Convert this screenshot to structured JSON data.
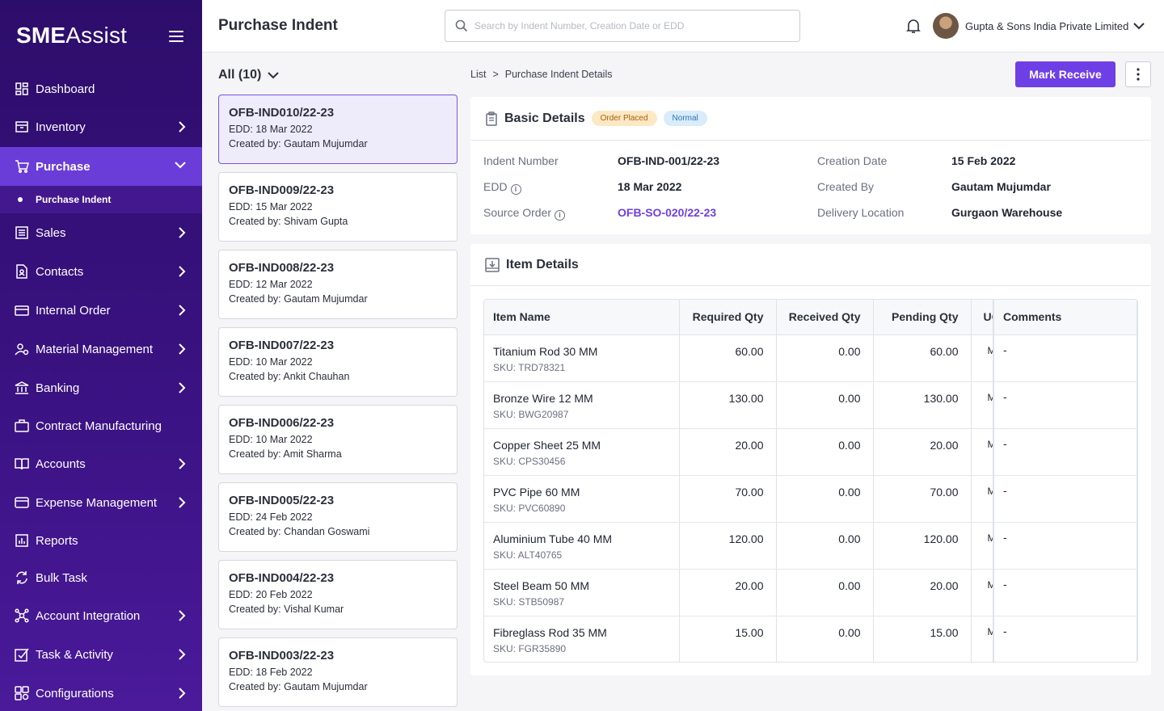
{
  "brand": {
    "bold": "SME",
    "light": "Assist"
  },
  "sidebar": {
    "items": [
      {
        "label": "Dashboard",
        "icon": "dashboard-icon"
      },
      {
        "label": "Inventory",
        "icon": "inventory-icon"
      },
      {
        "label": "Purchase",
        "icon": "cart-icon"
      },
      {
        "label": "Sales",
        "icon": "sales-icon"
      },
      {
        "label": "Contacts",
        "icon": "contacts-icon"
      },
      {
        "label": "Internal Order",
        "icon": "internal-order-icon"
      },
      {
        "label": "Material Management",
        "icon": "material-icon"
      },
      {
        "label": "Banking",
        "icon": "bank-icon"
      },
      {
        "label": "Contract Manufacturing",
        "icon": "briefcase-icon"
      },
      {
        "label": "Accounts",
        "icon": "book-icon"
      },
      {
        "label": "Expense Management",
        "icon": "wallet-icon"
      },
      {
        "label": "Reports",
        "icon": "reports-icon"
      },
      {
        "label": "Bulk Task",
        "icon": "sync-icon"
      },
      {
        "label": "Account Integration",
        "icon": "integration-icon"
      },
      {
        "label": "Task & Activity",
        "icon": "task-icon"
      },
      {
        "label": "Configurations",
        "icon": "config-icon"
      }
    ],
    "sub_item": "Purchase Indent"
  },
  "header": {
    "title": "Purchase Indent",
    "search_placeholder": "Search by Indent Number, Creation Date or EDD",
    "company": "Gupta & Sons India Private Limited"
  },
  "list": {
    "filter_label": "All (10)",
    "cards": [
      {
        "id": "OFB-IND010/22-23",
        "edd": "EDD: 18 Mar 2022",
        "created": "Created by: Gautam Mujumdar"
      },
      {
        "id": "OFB-IND009/22-23",
        "edd": "EDD: 15 Mar 2022",
        "created": "Created by: Shivam Gupta"
      },
      {
        "id": "OFB-IND008/22-23",
        "edd": "EDD: 12 Mar 2022",
        "created": "Created by: Gautam Mujumdar"
      },
      {
        "id": "OFB-IND007/22-23",
        "edd": "EDD: 10 Mar 2022",
        "created": "Created by: Ankit Chauhan"
      },
      {
        "id": "OFB-IND006/22-23",
        "edd": "EDD: 10 Mar 2022",
        "created": "Created by: Amit Sharma"
      },
      {
        "id": "OFB-IND005/22-23",
        "edd": "EDD: 24 Feb 2022",
        "created": "Created by: Chandan Goswami"
      },
      {
        "id": "OFB-IND004/22-23",
        "edd": "EDD: 20 Feb 2022",
        "created": "Created by: Vishal Kumar"
      },
      {
        "id": "OFB-IND003/22-23",
        "edd": "EDD: 18 Feb 2022",
        "created": "Created by: Gautam Mujumdar"
      }
    ]
  },
  "breadcrumb": {
    "root": "List",
    "sep": ">",
    "current": "Purchase Indent Details"
  },
  "actions": {
    "mark_receive": "Mark Receive"
  },
  "basic": {
    "title": "Basic Details",
    "badge_status": "Order Placed",
    "badge_priority": "Normal",
    "indent_number_label": "Indent Number",
    "indent_number": "OFB-IND-001/22-23",
    "edd_label": "EDD",
    "edd": "18 Mar 2022",
    "source_order_label": "Source Order",
    "source_order": "OFB-SO-020/22-23",
    "creation_date_label": "Creation Date",
    "creation_date": "15 Feb 2022",
    "created_by_label": "Created By",
    "created_by": "Gautam Mujumdar",
    "delivery_location_label": "Delivery Location",
    "delivery_location": "Gurgaon Warehouse"
  },
  "items": {
    "title": "Item Details",
    "columns": {
      "name": "Item Name",
      "required": "Required Qty",
      "received": "Received Qty",
      "pending": "Pending Qty",
      "uom": "UOM",
      "comments": "Comments"
    },
    "rows": [
      {
        "name": "Titanium Rod 30 MM",
        "sku": "SKU: TRD78321",
        "required": "60.00",
        "received": "0.00",
        "pending": "60.00",
        "uom": "MM",
        "comments": "-"
      },
      {
        "name": "Bronze Wire 12 MM",
        "sku": "SKU: BWG20987",
        "required": "130.00",
        "received": "0.00",
        "pending": "130.00",
        "uom": "MM",
        "comments": "-"
      },
      {
        "name": "Copper Sheet 25 MM",
        "sku": "SKU: CPS30456",
        "required": "20.00",
        "received": "0.00",
        "pending": "20.00",
        "uom": "MM",
        "comments": "-"
      },
      {
        "name": "PVC Pipe 60 MM",
        "sku": "SKU: PVC60890",
        "required": "70.00",
        "received": "0.00",
        "pending": "70.00",
        "uom": "MM",
        "comments": "-"
      },
      {
        "name": "Aluminium Tube 40 MM",
        "sku": "SKU: ALT40765",
        "required": "120.00",
        "received": "0.00",
        "pending": "120.00",
        "uom": "MM",
        "comments": "-"
      },
      {
        "name": "Steel Beam 50 MM",
        "sku": "SKU: STB50987",
        "required": "20.00",
        "received": "0.00",
        "pending": "20.00",
        "uom": "MM",
        "comments": "-"
      },
      {
        "name": "Fibreglass Rod 35 MM",
        "sku": "SKU: FGR35890",
        "required": "15.00",
        "received": "0.00",
        "pending": "15.00",
        "uom": "MM",
        "comments": "-"
      }
    ]
  },
  "colors": {
    "primary": "#6f3fe6",
    "sidebar": "#2d0d6b",
    "active": "#6a3dd9"
  }
}
